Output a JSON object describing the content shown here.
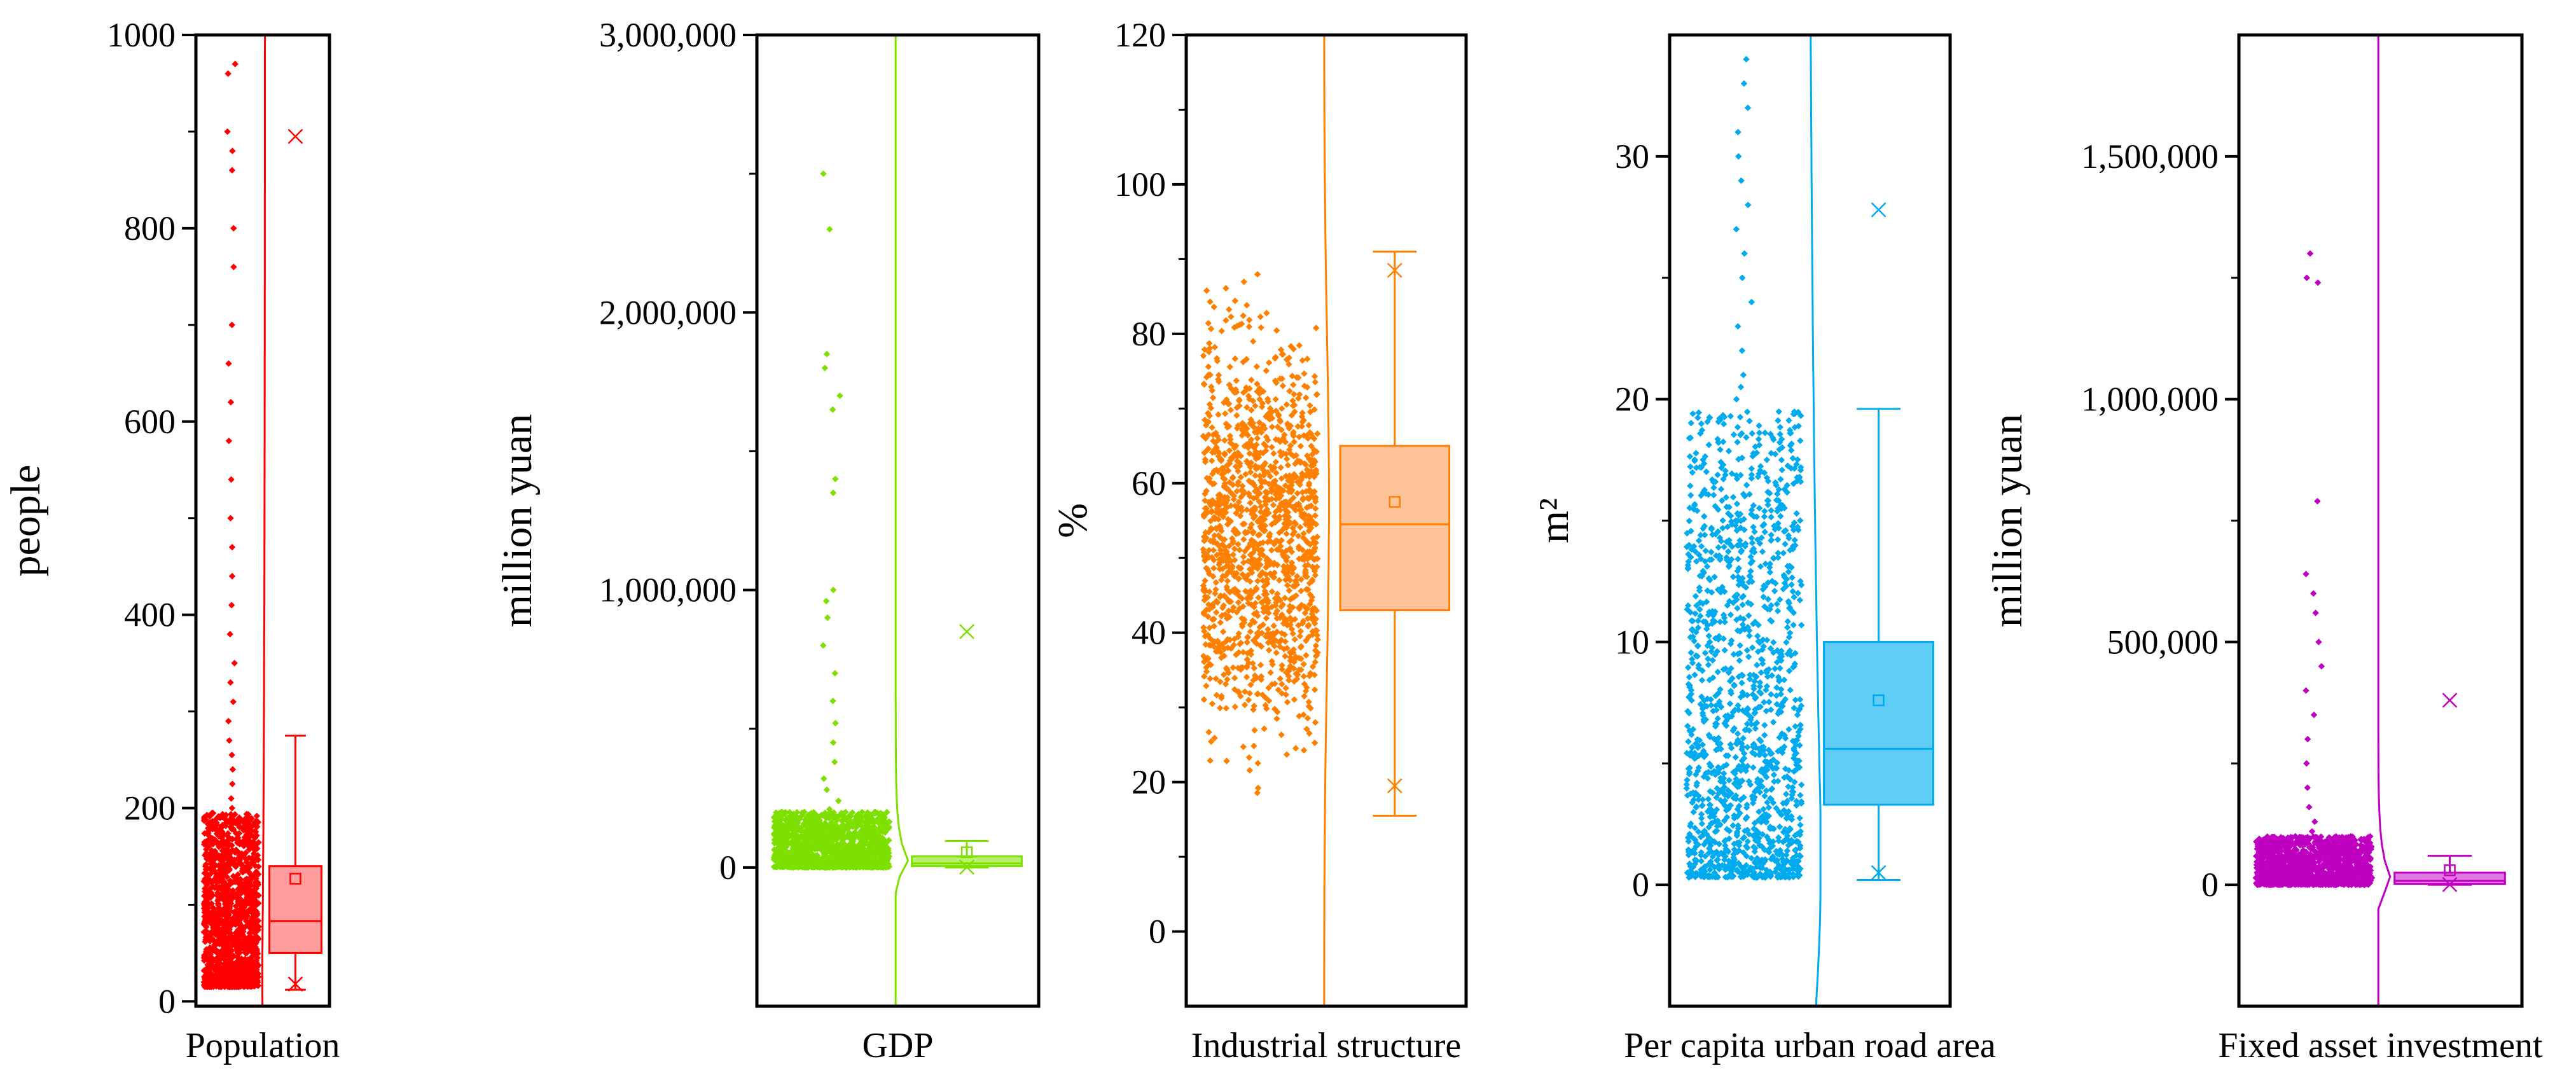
{
  "chart_data": [
    {
      "type": "box",
      "category": "Population",
      "ylabel": "people",
      "ylim": [
        -5,
        1000
      ],
      "yticks": [
        0,
        200,
        400,
        600,
        800,
        1000
      ],
      "ytick_labels": [
        "0",
        "200",
        "400",
        "600",
        "800",
        "1000"
      ],
      "color": "#ff0000",
      "box_fill": "#ff9c9c",
      "stats": {
        "whisker_low": 12,
        "q1": 50,
        "median": 83,
        "mean": 127,
        "q3": 140,
        "whisker_high": 275,
        "p1": 18,
        "p99": 895
      },
      "scatter_range": [
        15,
        195
      ],
      "outliers": [
        200,
        210,
        225,
        240,
        255,
        270,
        290,
        310,
        330,
        350,
        380,
        410,
        440,
        470,
        500,
        540,
        580,
        620,
        660,
        700,
        760,
        800,
        860,
        880,
        900,
        960,
        970
      ]
    },
    {
      "type": "box",
      "category": "GDP",
      "ylabel": "million yuan",
      "ylim": [
        -500000,
        3000000
      ],
      "yticks": [
        0,
        1000000,
        2000000,
        3000000
      ],
      "ytick_labels": [
        "0",
        "1,000,000",
        "2,000,000",
        "3,000,000"
      ],
      "color": "#7ee000",
      "box_fill": "#b8f06a",
      "stats": {
        "whisker_low": 0,
        "q1": 5000,
        "median": 15000,
        "mean": 55000,
        "q3": 40000,
        "whisker_high": 95000,
        "p1": 1000,
        "p99": 850000
      },
      "scatter_range": [
        0,
        200000
      ],
      "outliers": [
        210000,
        240000,
        280000,
        320000,
        380000,
        450000,
        520000,
        600000,
        700000,
        800000,
        900000,
        960000,
        1000000,
        1350000,
        1400000,
        1650000,
        1700000,
        1800000,
        1850000,
        2300000,
        2500000
      ]
    },
    {
      "type": "box",
      "category": "Industrial structure",
      "ylabel": "%",
      "ylim": [
        -10,
        120
      ],
      "yticks": [
        0,
        20,
        40,
        60,
        80,
        100,
        120
      ],
      "ytick_labels": [
        "0",
        "20",
        "40",
        "60",
        "80",
        "100",
        "120"
      ],
      "color": "#ff8000",
      "box_fill": "#ffc39a",
      "stats": {
        "whisker_low": 15.5,
        "q1": 43,
        "median": 54.5,
        "mean": 57.5,
        "q3": 65,
        "whisker_high": 91,
        "p1": 19.5,
        "p99": 88.5
      },
      "scatter_range": [
        16,
        91
      ],
      "outliers": []
    },
    {
      "type": "box",
      "category": "Per capita urban road area",
      "ylabel": "m²",
      "ylim": [
        -5,
        35
      ],
      "yticks": [
        0,
        10,
        20,
        30
      ],
      "ytick_labels": [
        "0",
        "10",
        "20",
        "30"
      ],
      "color": "#00aaee",
      "box_fill": "#5fcdf5",
      "stats": {
        "whisker_low": 0.2,
        "q1": 3.3,
        "median": 5.6,
        "mean": 7.6,
        "q3": 10,
        "whisker_high": 19.6,
        "p1": 0.5,
        "p99": 27.8
      },
      "scatter_range": [
        0.3,
        19.5
      ],
      "outliers": [
        20,
        20.5,
        21,
        22,
        23,
        24,
        25,
        26,
        27,
        28,
        29,
        30,
        31,
        32,
        33,
        34
      ]
    },
    {
      "type": "box",
      "category": "Fixed asset investment",
      "ylabel": "million yuan",
      "ylim": [
        -250000,
        1750000
      ],
      "yticks": [
        0,
        500000,
        1000000,
        1500000
      ],
      "ytick_labels": [
        "0",
        "500,000",
        "1,000,000",
        "1,500,000"
      ],
      "color": "#c000c0",
      "box_fill": "#e07ae0",
      "stats": {
        "whisker_low": 0,
        "q1": 2000,
        "median": 8000,
        "mean": 30000,
        "q3": 25000,
        "whisker_high": 60000,
        "p1": 500,
        "p99": 380000
      },
      "scatter_range": [
        0,
        100000
      ],
      "outliers": [
        110000,
        130000,
        160000,
        200000,
        250000,
        300000,
        350000,
        400000,
        450000,
        500000,
        560000,
        600000,
        640000,
        790000,
        1240000,
        1250000,
        1300000
      ]
    }
  ]
}
